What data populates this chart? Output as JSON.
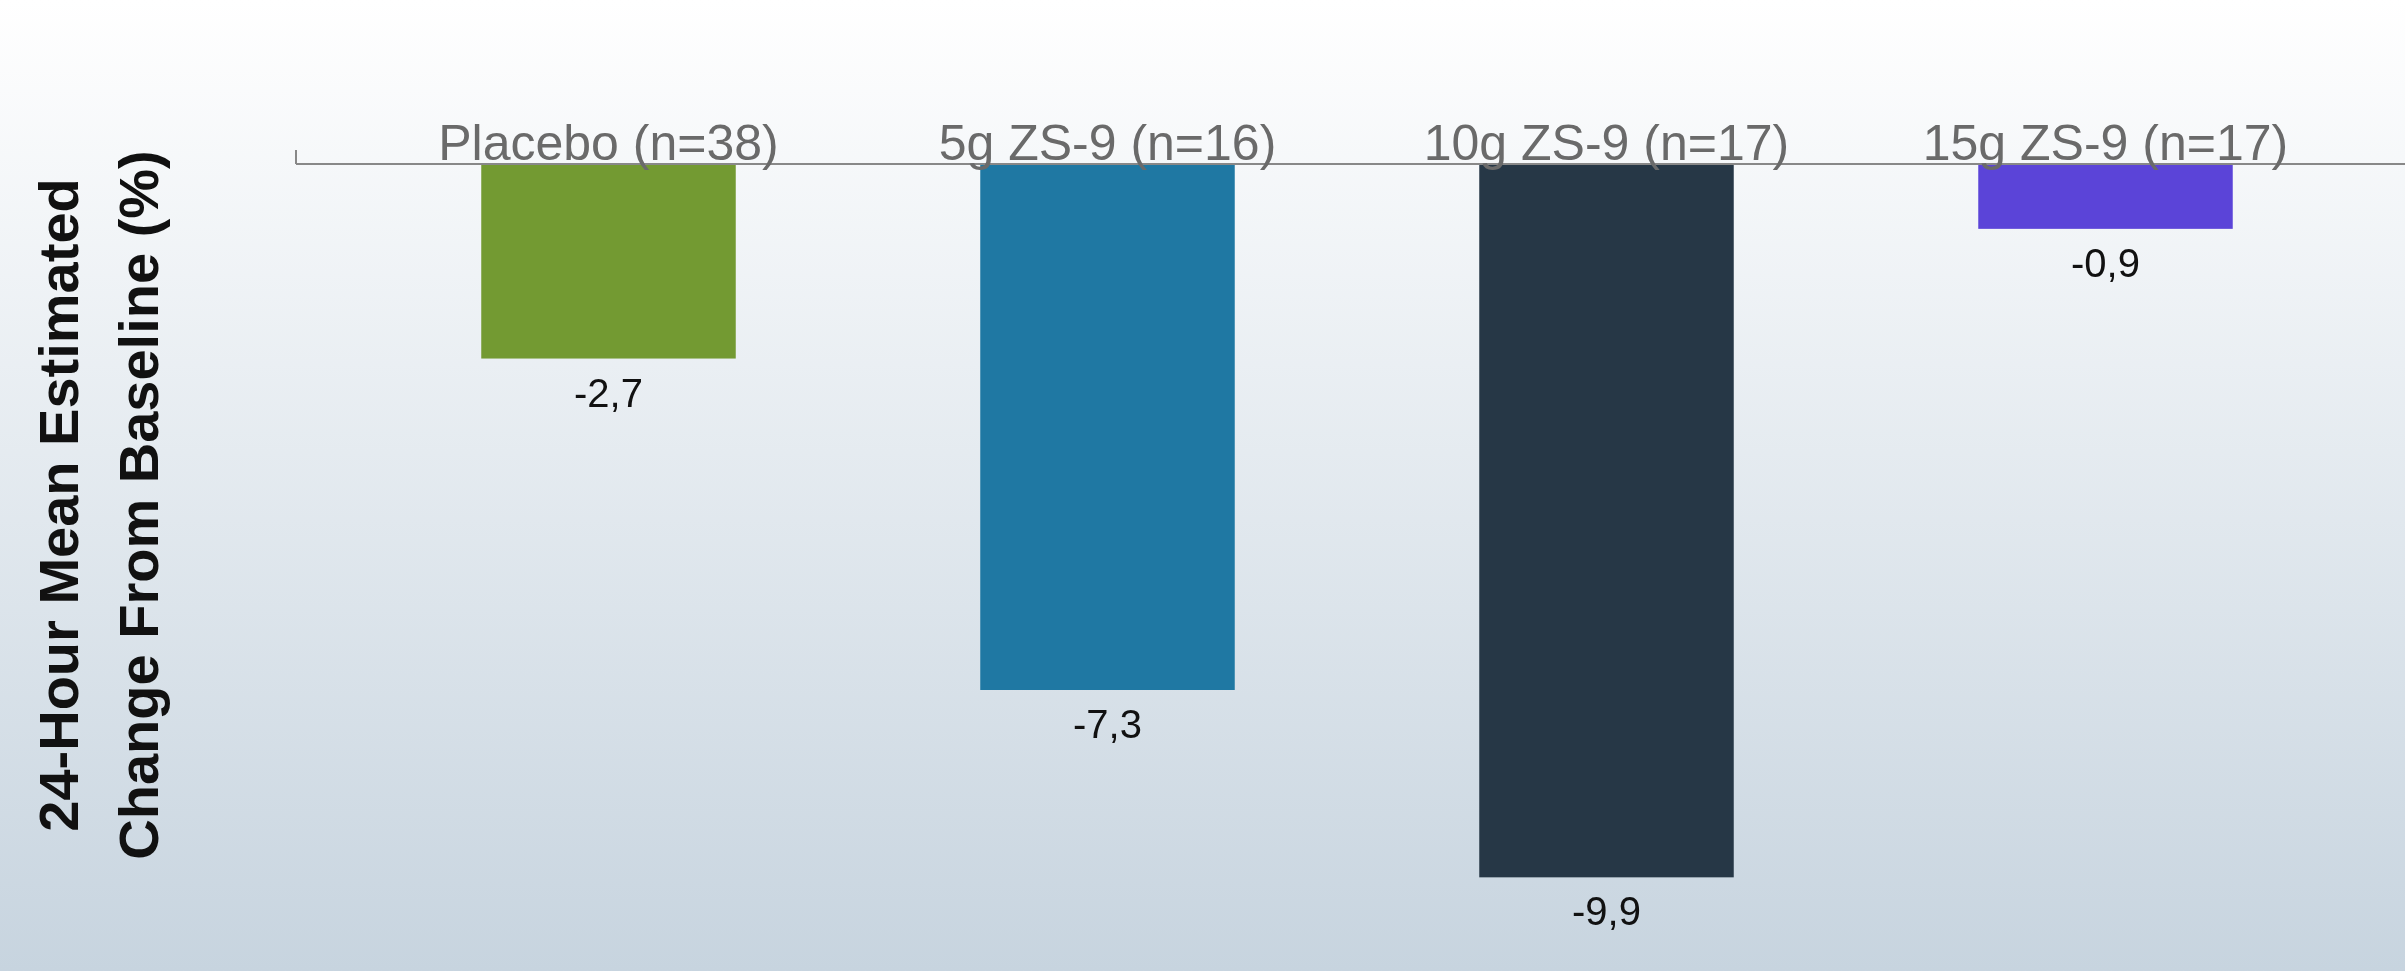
{
  "chart_data": {
    "type": "bar",
    "ylabel": "24-Hour Mean Estimated\nChange From Baseline (%)",
    "categories": [
      "Placebo (n=38)",
      "5g ZS-9 (n=16)",
      "10g ZS-9 (n=17)",
      "15g ZS-9 (n=17)"
    ],
    "values": [
      -2.7,
      -7.3,
      -9.9,
      -0.9
    ],
    "value_labels": [
      "-2,7",
      "-7,3",
      "-9,9",
      "-0,9"
    ],
    "colors": [
      "#739a32",
      "#1f78a3",
      "#263746",
      "#5b44d8"
    ],
    "ylim": [
      -11.2,
      0
    ],
    "grid": false
  }
}
